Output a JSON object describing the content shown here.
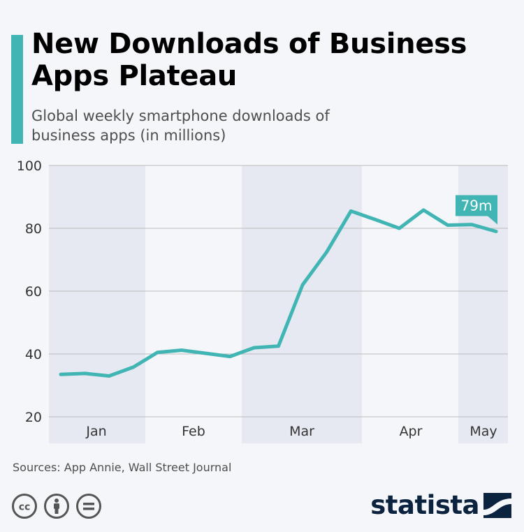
{
  "header": {
    "title": "New Downloads of Business Apps Plateau",
    "subtitle": "Global weekly smartphone downloads of business apps (in millions)"
  },
  "footer": {
    "source": "Sources: App Annie, Wall Street Journal",
    "logo_text": "statista",
    "license_icons": [
      "cc-icon",
      "attribution-icon",
      "no-derivatives-icon"
    ]
  },
  "colors": {
    "line": "#40b5b3",
    "accent": "#40b5b3",
    "band": "#e6e9f2",
    "grid": "#bcbcbc",
    "logo": "#0c2340"
  },
  "chart_data": {
    "type": "line",
    "title": "New Downloads of Business Apps Plateau",
    "subtitle": "Global weekly smartphone downloads of business apps (in millions)",
    "ylim": [
      20,
      100
    ],
    "yticks": [
      20,
      40,
      60,
      80,
      100
    ],
    "grid": true,
    "month_labels": [
      "Jan",
      "Feb",
      "Mar",
      "Apr",
      "May"
    ],
    "series": [
      {
        "values": [
          33.5,
          33.8,
          33.0,
          35.8,
          40.5,
          41.2,
          40.2,
          39.2,
          42.0,
          42.5,
          62.0,
          72.5,
          85.5,
          82.8,
          80.0,
          85.8,
          81.0,
          81.2,
          79.0
        ]
      }
    ],
    "annotation": {
      "text": "79m",
      "point_index": 18
    }
  }
}
